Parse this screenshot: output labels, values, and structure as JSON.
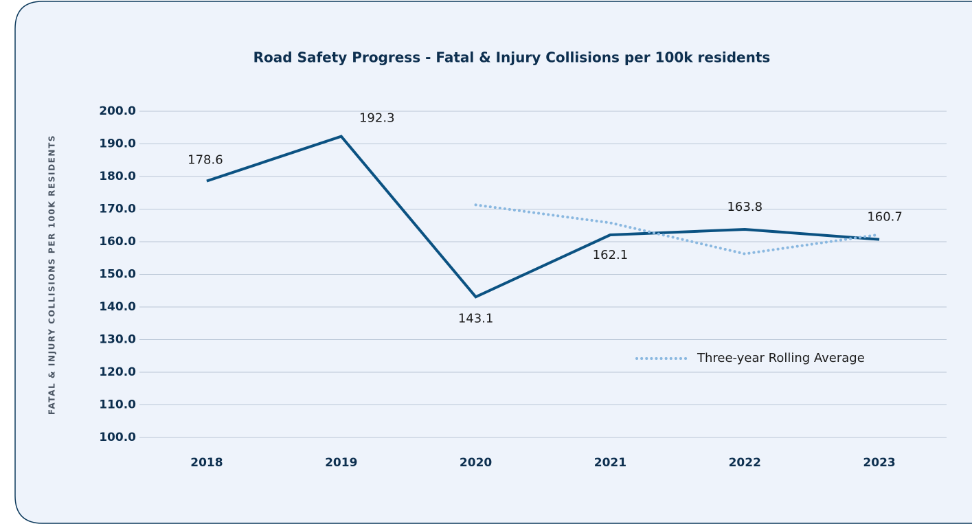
{
  "chart_data": {
    "type": "line",
    "title": "Road Safety Progress - Fatal & Injury Collisions per 100k residents",
    "y_axis_label": "FATAL & INJURY COLLISIONS PER 100K RESIDENTS",
    "categories": [
      "2018",
      "2019",
      "2020",
      "2021",
      "2022",
      "2023"
    ],
    "series": [
      {
        "color": "#0b5282",
        "values": [
          178.6,
          192.3,
          143.1,
          162.1,
          163.8,
          160.7
        ],
        "data_labels": true
      },
      {
        "name": "Three-year Rolling Average",
        "color": "#8ab8e0",
        "dotted": true,
        "values": [
          null,
          null,
          171.3,
          165.8,
          156.3,
          162.2
        ]
      }
    ],
    "ylim": [
      100,
      200
    ],
    "yticks": [
      {
        "value": 100,
        "label": "100.0"
      },
      {
        "value": 110,
        "label": "110.0"
      },
      {
        "value": 120,
        "label": "120.0"
      },
      {
        "value": 130,
        "label": "130.0"
      },
      {
        "value": 140,
        "label": "140.0"
      },
      {
        "value": 150,
        "label": "150.0"
      },
      {
        "value": 160,
        "label": "160.0"
      },
      {
        "value": 170,
        "label": "170.0"
      },
      {
        "value": 180,
        "label": "180.0"
      },
      {
        "value": 190,
        "label": "190.0"
      },
      {
        "value": 200,
        "label": "200.0"
      }
    ],
    "grid": true,
    "legend": "lower right"
  }
}
